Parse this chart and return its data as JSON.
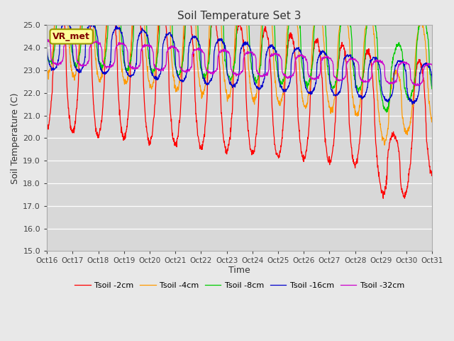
{
  "title": "Soil Temperature Set 3",
  "xlabel": "Time",
  "ylabel": "Soil Temperature (C)",
  "ylim": [
    15.0,
    25.0
  ],
  "yticks": [
    15.0,
    16.0,
    17.0,
    18.0,
    19.0,
    20.0,
    21.0,
    22.0,
    23.0,
    24.0,
    25.0
  ],
  "xtick_labels": [
    "Oct 16",
    "Oct 17",
    "Oct 18",
    "Oct 19",
    "Oct 20",
    "Oct 21",
    "Oct 22",
    "Oct 23",
    "Oct 24",
    "Oct 25",
    "Oct 26",
    "Oct 27",
    "Oct 28",
    "Oct 29",
    "Oct 30",
    "Oct 31"
  ],
  "colors": {
    "Tsoil -2cm": "#ff0000",
    "Tsoil -4cm": "#ff9900",
    "Tsoil -8cm": "#00cc00",
    "Tsoil -16cm": "#0000cc",
    "Tsoil -32cm": "#cc00cc"
  },
  "legend_label": "VR_met",
  "background_color": "#e8e8e8",
  "plot_bg_color": "#d8d8d8",
  "n_points": 1440
}
